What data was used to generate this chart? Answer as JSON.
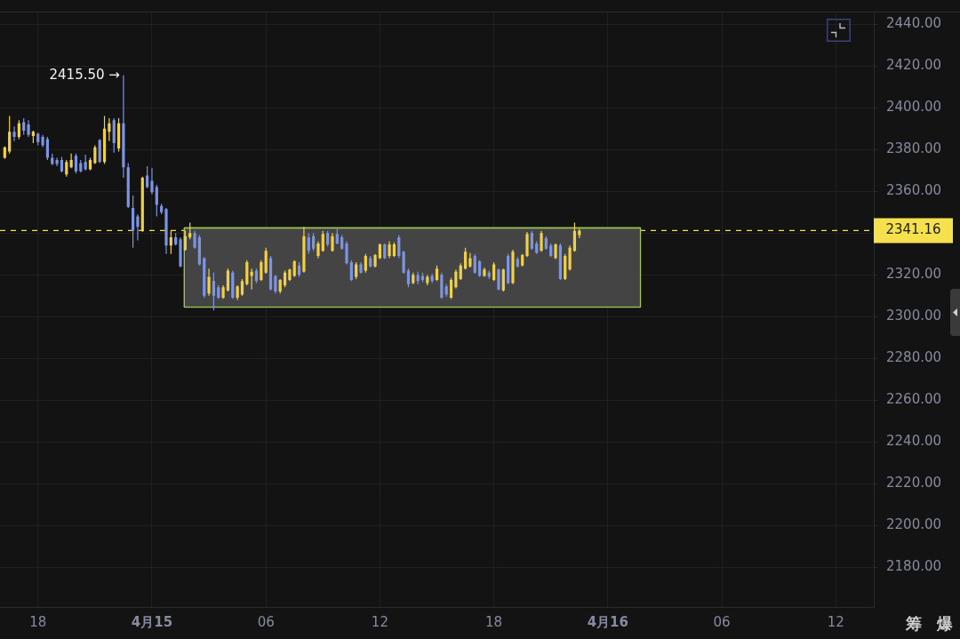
{
  "chart_data": {
    "type": "candlestick",
    "x": [
      "--04-14T16:15",
      "--04-14T16:30",
      "--04-14T16:45",
      "--04-14T17:00",
      "--04-14T17:15",
      "--04-14T17:30",
      "--04-14T17:45",
      "--04-14T18:00",
      "--04-14T18:15",
      "--04-14T18:30",
      "--04-14T18:45",
      "--04-14T19:00",
      "--04-14T19:15",
      "--04-14T19:30",
      "--04-14T19:45",
      "--04-14T20:00",
      "--04-14T20:15",
      "--04-14T20:30",
      "--04-14T20:45",
      "--04-14T21:00",
      "--04-14T21:15",
      "--04-14T21:30",
      "--04-14T21:45",
      "--04-14T22:00",
      "--04-14T22:15",
      "--04-14T22:30",
      "--04-14T22:45",
      "--04-14T23:00",
      "--04-14T23:15",
      "--04-14T23:30",
      "--04-14T23:45",
      "--04-15T00:00",
      "--04-15T00:15",
      "--04-15T00:30",
      "--04-15T00:45",
      "--04-15T01:00",
      "--04-15T01:15",
      "--04-15T01:30",
      "--04-15T01:45",
      "--04-15T02:00",
      "--04-15T02:15",
      "--04-15T02:30",
      "--04-15T02:45",
      "--04-15T03:00",
      "--04-15T03:15",
      "--04-15T03:30",
      "--04-15T03:45",
      "--04-15T04:00",
      "--04-15T04:15",
      "--04-15T04:30",
      "--04-15T04:45",
      "--04-15T05:00",
      "--04-15T05:15",
      "--04-15T05:30",
      "--04-15T05:45",
      "--04-15T06:00",
      "--04-15T06:15",
      "--04-15T06:30",
      "--04-15T06:45",
      "--04-15T07:00",
      "--04-15T07:15",
      "--04-15T07:30",
      "--04-15T07:45",
      "--04-15T08:00",
      "--04-15T08:15",
      "--04-15T08:30",
      "--04-15T08:45",
      "--04-15T09:00",
      "--04-15T09:15",
      "--04-15T09:30",
      "--04-15T09:45",
      "--04-15T10:00",
      "--04-15T10:15",
      "--04-15T10:30",
      "--04-15T10:45",
      "--04-15T11:00",
      "--04-15T11:15",
      "--04-15T11:30",
      "--04-15T11:45",
      "--04-15T12:00",
      "--04-15T12:15",
      "--04-15T12:30",
      "--04-15T12:45",
      "--04-15T13:00",
      "--04-15T13:15",
      "--04-15T13:30",
      "--04-15T13:45",
      "--04-15T14:00",
      "--04-15T14:15",
      "--04-15T14:30",
      "--04-15T14:45",
      "--04-15T15:00",
      "--04-15T15:15",
      "--04-15T15:30",
      "--04-15T15:45",
      "--04-15T16:00",
      "--04-15T16:15",
      "--04-15T16:30",
      "--04-15T16:45",
      "--04-15T17:00",
      "--04-15T17:15",
      "--04-15T17:30",
      "--04-15T17:45",
      "--04-15T18:00",
      "--04-15T18:15",
      "--04-15T18:30",
      "--04-15T18:45",
      "--04-15T19:00",
      "--04-15T19:15",
      "--04-15T19:30",
      "--04-15T19:45",
      "--04-15T20:00",
      "--04-15T20:15",
      "--04-15T20:30",
      "--04-15T20:45",
      "--04-15T21:00",
      "--04-15T21:15",
      "--04-15T21:30",
      "--04-15T21:45",
      "--04-15T22:00",
      "--04-15T22:15",
      "--04-15T22:30"
    ],
    "ohlc": [
      [
        2376,
        2381.5,
        2375.5,
        2381
      ],
      [
        2379,
        2396,
        2378,
        2388.5
      ],
      [
        2388.5,
        2391,
        2384,
        2386
      ],
      [
        2386,
        2394,
        2385,
        2392.5
      ],
      [
        2393,
        2395,
        2387,
        2389
      ],
      [
        2392,
        2394,
        2386,
        2387
      ],
      [
        2386.5,
        2389,
        2383,
        2388.5
      ],
      [
        2387.5,
        2388,
        2382,
        2383.5
      ],
      [
        2386,
        2387,
        2381,
        2382
      ],
      [
        2385,
        2386,
        2375,
        2376
      ],
      [
        2376,
        2378,
        2372.5,
        2373
      ],
      [
        2375,
        2376,
        2372,
        2373
      ],
      [
        2375,
        2376.5,
        2369,
        2369.5
      ],
      [
        2368,
        2375,
        2367,
        2374
      ],
      [
        2371.5,
        2378,
        2371,
        2375
      ],
      [
        2377,
        2378,
        2368.5,
        2369.5
      ],
      [
        2373.5,
        2375,
        2369,
        2369.5
      ],
      [
        2374,
        2377.5,
        2370,
        2370.5
      ],
      [
        2370.5,
        2376,
        2370,
        2375
      ],
      [
        2373.5,
        2382,
        2373,
        2381
      ],
      [
        2384.5,
        2385,
        2373.5,
        2374
      ],
      [
        2374,
        2396,
        2373,
        2390
      ],
      [
        2388.5,
        2395,
        2384,
        2392.5
      ],
      [
        2394,
        2395,
        2378.5,
        2383
      ],
      [
        2380.5,
        2395,
        2379,
        2392.5
      ],
      [
        2392.5,
        2415.5,
        2366.5,
        2371.5
      ],
      [
        2371.5,
        2373.5,
        2352,
        2352.5
      ],
      [
        2352,
        2358,
        2333,
        2341
      ],
      [
        2348,
        2349,
        2336.5,
        2343
      ],
      [
        2341,
        2367,
        2340.5,
        2366.5
      ],
      [
        2367.5,
        2372,
        2361.5,
        2362
      ],
      [
        2365,
        2371,
        2358.5,
        2359.5
      ],
      [
        2362,
        2363,
        2348,
        2353.5
      ],
      [
        2353,
        2354,
        2349,
        2350
      ],
      [
        2351.5,
        2352,
        2330,
        2334
      ],
      [
        2334,
        2341,
        2330,
        2338
      ],
      [
        2338,
        2340,
        2334,
        2334.5
      ],
      [
        2337,
        2338,
        2323.5,
        2324
      ],
      [
        2332,
        2341,
        2331.5,
        2338.5
      ],
      [
        2338,
        2345,
        2337,
        2340
      ],
      [
        2340,
        2341,
        2332.5,
        2333
      ],
      [
        2338,
        2339,
        2324.5,
        2325
      ],
      [
        2328,
        2328.5,
        2309,
        2310
      ],
      [
        2311,
        2323,
        2310,
        2319
      ],
      [
        2317,
        2321,
        2303,
        2310
      ],
      [
        2314,
        2315,
        2308.5,
        2309
      ],
      [
        2309,
        2315,
        2308.5,
        2314
      ],
      [
        2312.5,
        2323,
        2312,
        2322
      ],
      [
        2321,
        2322,
        2308.5,
        2309
      ],
      [
        2309,
        2315,
        2308,
        2314.5
      ],
      [
        2310.5,
        2318,
        2310,
        2317
      ],
      [
        2315.5,
        2327,
        2315,
        2326
      ],
      [
        2319.5,
        2323,
        2313,
        2321.5
      ],
      [
        2322,
        2323,
        2316,
        2317
      ],
      [
        2317.5,
        2327,
        2317,
        2326
      ],
      [
        2321,
        2333,
        2320.5,
        2331.5
      ],
      [
        2328,
        2329,
        2312.5,
        2313
      ],
      [
        2319.5,
        2320,
        2311,
        2312
      ],
      [
        2312,
        2318,
        2311,
        2317.5
      ],
      [
        2315,
        2322,
        2314,
        2321
      ],
      [
        2317.5,
        2323,
        2317,
        2322.5
      ],
      [
        2319.5,
        2327,
        2319,
        2326.5
      ],
      [
        2324.5,
        2326,
        2319,
        2320
      ],
      [
        2321.5,
        2343,
        2321,
        2338.5
      ],
      [
        2338,
        2340,
        2330,
        2331.5
      ],
      [
        2338.5,
        2340,
        2331.5,
        2332.5
      ],
      [
        2329,
        2336,
        2328,
        2335
      ],
      [
        2331.5,
        2341,
        2331,
        2339.5
      ],
      [
        2340,
        2341,
        2333.5,
        2334.5
      ],
      [
        2331.5,
        2340,
        2331,
        2338.5
      ],
      [
        2339.5,
        2342,
        2334.5,
        2335
      ],
      [
        2338,
        2339,
        2332,
        2332.5
      ],
      [
        2335,
        2336,
        2325,
        2325.5
      ],
      [
        2326,
        2327,
        2317,
        2317.5
      ],
      [
        2319,
        2326,
        2318,
        2325
      ],
      [
        2325,
        2326,
        2320.5,
        2321
      ],
      [
        2322,
        2330,
        2321,
        2329
      ],
      [
        2328,
        2329,
        2323.5,
        2324
      ],
      [
        2324,
        2330,
        2323.5,
        2329.5
      ],
      [
        2328,
        2335,
        2327.5,
        2334.5
      ],
      [
        2334.5,
        2335,
        2327.5,
        2328
      ],
      [
        2329,
        2336,
        2328,
        2334.5
      ],
      [
        2329,
        2335.5,
        2328.5,
        2334.5
      ],
      [
        2338,
        2339,
        2328,
        2329
      ],
      [
        2331,
        2331.5,
        2320.5,
        2321
      ],
      [
        2322,
        2323,
        2314,
        2315.5
      ],
      [
        2316,
        2321,
        2315.5,
        2320
      ],
      [
        2320,
        2321.5,
        2315.5,
        2317
      ],
      [
        2319.5,
        2321,
        2316.5,
        2317.5
      ],
      [
        2316,
        2320,
        2315,
        2319
      ],
      [
        2319.5,
        2320.5,
        2316,
        2317
      ],
      [
        2317.5,
        2324.5,
        2317,
        2323
      ],
      [
        2320,
        2321,
        2308.5,
        2309
      ],
      [
        2314.5,
        2315.5,
        2309.5,
        2310.5
      ],
      [
        2309,
        2318.5,
        2308.5,
        2317.5
      ],
      [
        2314,
        2322.5,
        2313.5,
        2321.5
      ],
      [
        2318,
        2325.5,
        2317.5,
        2324.5
      ],
      [
        2323,
        2333,
        2322.5,
        2331
      ],
      [
        2324,
        2330.5,
        2323.5,
        2328
      ],
      [
        2329,
        2330,
        2320.5,
        2321
      ],
      [
        2326.5,
        2327,
        2319,
        2319.5
      ],
      [
        2319.5,
        2323.5,
        2319,
        2322.5
      ],
      [
        2321,
        2322,
        2318,
        2319
      ],
      [
        2317.5,
        2326,
        2317,
        2325
      ],
      [
        2322.5,
        2323,
        2312.5,
        2313
      ],
      [
        2312.5,
        2323,
        2312,
        2322.5
      ],
      [
        2329,
        2330,
        2315.5,
        2316
      ],
      [
        2316,
        2332,
        2315.5,
        2331
      ],
      [
        2327.5,
        2328.5,
        2323.5,
        2324
      ],
      [
        2324.5,
        2330,
        2324,
        2329.5
      ],
      [
        2329,
        2340.5,
        2328.5,
        2339.5
      ],
      [
        2340,
        2341,
        2332,
        2332.5
      ],
      [
        2335,
        2336,
        2330,
        2330.5
      ],
      [
        2331.5,
        2341,
        2331,
        2340
      ],
      [
        2337.5,
        2338.5,
        2332,
        2332.5
      ],
      [
        2334,
        2335,
        2328.5,
        2329
      ],
      [
        2328,
        2335,
        2327.5,
        2334.5
      ],
      [
        2334,
        2335,
        2317.5,
        2318
      ],
      [
        2318,
        2330,
        2317.5,
        2329
      ],
      [
        2322.5,
        2334,
        2322,
        2333
      ],
      [
        2331.5,
        2345,
        2331,
        2341
      ],
      [
        2339,
        2342,
        2337.5,
        2341.16
      ]
    ],
    "colors": [
      "#efd04c",
      "#efd04c",
      "#7d94e3",
      "#efd04c",
      "#7d94e3",
      "#7d94e3",
      "#efd04c",
      "#7d94e3",
      "#7d94e3",
      "#7d94e3",
      "#7d94e3",
      "#7d94e3",
      "#7d94e3",
      "#efd04c",
      "#efd04c",
      "#7d94e3",
      "#7d94e3",
      "#7d94e3",
      "#efd04c",
      "#efd04c",
      "#7d94e3",
      "#efd04c",
      "#efd04c",
      "#7d94e3",
      "#efd04c",
      "#7d94e3",
      "#7d94e3",
      "#7d94e3",
      "#7d94e3",
      "#efd04c",
      "#7d94e3",
      "#7d94e3",
      "#7d94e3",
      "#7d94e3",
      "#7d94e3",
      "#efd04c",
      "#7d94e3",
      "#7d94e3",
      "#efd04c",
      "#efd04c",
      "#7d94e3",
      "#7d94e3",
      "#7d94e3",
      "#efd04c",
      "#7d94e3",
      "#7d94e3",
      "#efd04c",
      "#efd04c",
      "#7d94e3",
      "#efd04c",
      "#efd04c",
      "#efd04c",
      "#efd04c",
      "#7d94e3",
      "#efd04c",
      "#efd04c",
      "#7d94e3",
      "#7d94e3",
      "#efd04c",
      "#efd04c",
      "#efd04c",
      "#efd04c",
      "#7d94e3",
      "#efd04c",
      "#7d94e3",
      "#7d94e3",
      "#efd04c",
      "#efd04c",
      "#7d94e3",
      "#efd04c",
      "#7d94e3",
      "#7d94e3",
      "#7d94e3",
      "#7d94e3",
      "#efd04c",
      "#7d94e3",
      "#efd04c",
      "#7d94e3",
      "#efd04c",
      "#efd04c",
      "#7d94e3",
      "#efd04c",
      "#efd04c",
      "#7d94e3",
      "#7d94e3",
      "#7d94e3",
      "#efd04c",
      "#7d94e3",
      "#7d94e3",
      "#efd04c",
      "#7d94e3",
      "#efd04c",
      "#7d94e3",
      "#7d94e3",
      "#efd04c",
      "#efd04c",
      "#efd04c",
      "#efd04c",
      "#efd04c",
      "#7d94e3",
      "#7d94e3",
      "#efd04c",
      "#7d94e3",
      "#efd04c",
      "#7d94e3",
      "#efd04c",
      "#7d94e3",
      "#efd04c",
      "#7d94e3",
      "#efd04c",
      "#efd04c",
      "#7d94e3",
      "#7d94e3",
      "#efd04c",
      "#7d94e3",
      "#7d94e3",
      "#efd04c",
      "#7d94e3",
      "#efd04c",
      "#efd04c",
      "#efd04c",
      "#efd04c"
    ],
    "series": [
      {
        "type": "line",
        "x": [
          "--04-15T01:45",
          "--04-16T01:40"
        ],
        "values": [
          2342,
          2342
        ],
        "lower": [
          2305,
          2305
        ],
        "upper": [
          2342,
          2342
        ],
        "color": "#9dc35c"
      }
    ],
    "xlim": [
      "--04-14T16:00",
      "--04-16T14:00"
    ],
    "xticks": [
      {
        "value": "--04-14T18:00",
        "label": "18"
      },
      {
        "value": "--04-15T00:00",
        "label": "4月15"
      },
      {
        "value": "--04-15T06:00",
        "label": "06"
      },
      {
        "value": "--04-15T12:00",
        "label": "12"
      },
      {
        "value": "--04-15T18:00",
        "label": "18"
      },
      {
        "value": "--04-16T00:00",
        "label": "4月16"
      },
      {
        "value": "--04-16T06:00",
        "label": "06"
      },
      {
        "value": "--04-16T12:00",
        "label": "12"
      }
    ],
    "ylim": [
      2161,
      2446
    ],
    "yticks": [
      {
        "value": 2180,
        "label": "2180.00"
      },
      {
        "value": 2200,
        "label": "2200.00"
      },
      {
        "value": 2220,
        "label": "2220.00"
      },
      {
        "value": 2240,
        "label": "2240.00"
      },
      {
        "value": 2260,
        "label": "2260.00"
      },
      {
        "value": 2280,
        "label": "2280.00"
      },
      {
        "value": 2300,
        "label": "2300.00"
      },
      {
        "value": 2320,
        "label": "2320.00"
      },
      {
        "value": 2340,
        "label": null
      },
      {
        "value": 2360,
        "label": "2360.00"
      },
      {
        "value": 2380,
        "label": "2380.00"
      },
      {
        "value": 2400,
        "label": "2400.00"
      },
      {
        "value": 2420,
        "label": "2420.00"
      },
      {
        "value": 2440,
        "label": "2440.00"
      }
    ],
    "ref_lines": [
      {
        "axis": "y",
        "value": 2341.16,
        "label": "2341.16",
        "color": "#f5e14d",
        "line_style": "dashed"
      }
    ],
    "annotations": [
      {
        "text": "2415.50 →",
        "x": "--04-14T22:30",
        "y": 2415.5
      },
      "筹",
      "爆"
    ],
    "grid": true
  }
}
